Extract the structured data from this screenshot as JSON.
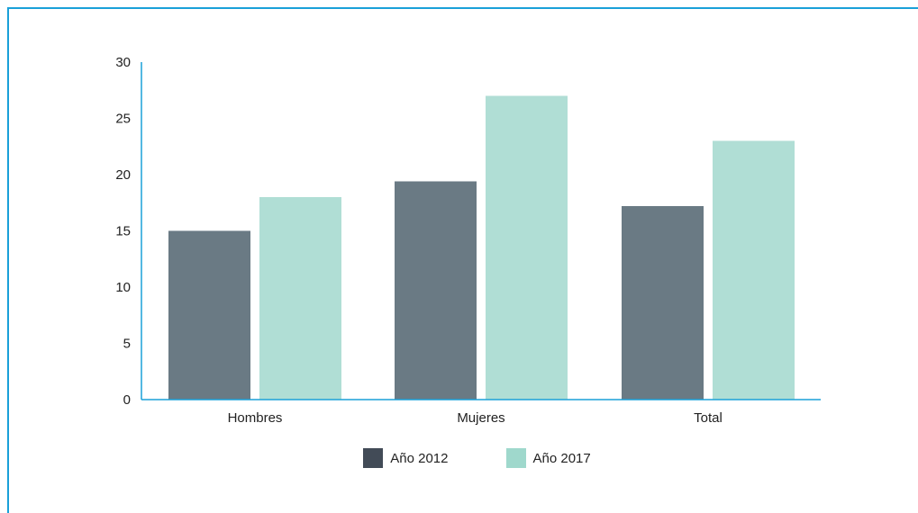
{
  "chart_data": {
    "type": "bar",
    "categories": [
      "Hombres",
      "Mujeres",
      "Total"
    ],
    "series": [
      {
        "name": "Año 2012",
        "values": [
          15,
          19.4,
          17.2
        ],
        "color": "#6a7a84",
        "legend_color": "#424b57"
      },
      {
        "name": "Año 2017",
        "values": [
          18,
          27,
          23
        ],
        "color": "#b0ded5",
        "legend_color": "#9fd8cc"
      }
    ],
    "yticks": [
      "0",
      "5",
      "10",
      "15",
      "20",
      "25",
      "30"
    ],
    "ylim": [
      0,
      30
    ],
    "grid": false,
    "legend_position": "bottom-center",
    "axis_color": "#1aa0d8",
    "frame_color": "#1aa0d8"
  }
}
